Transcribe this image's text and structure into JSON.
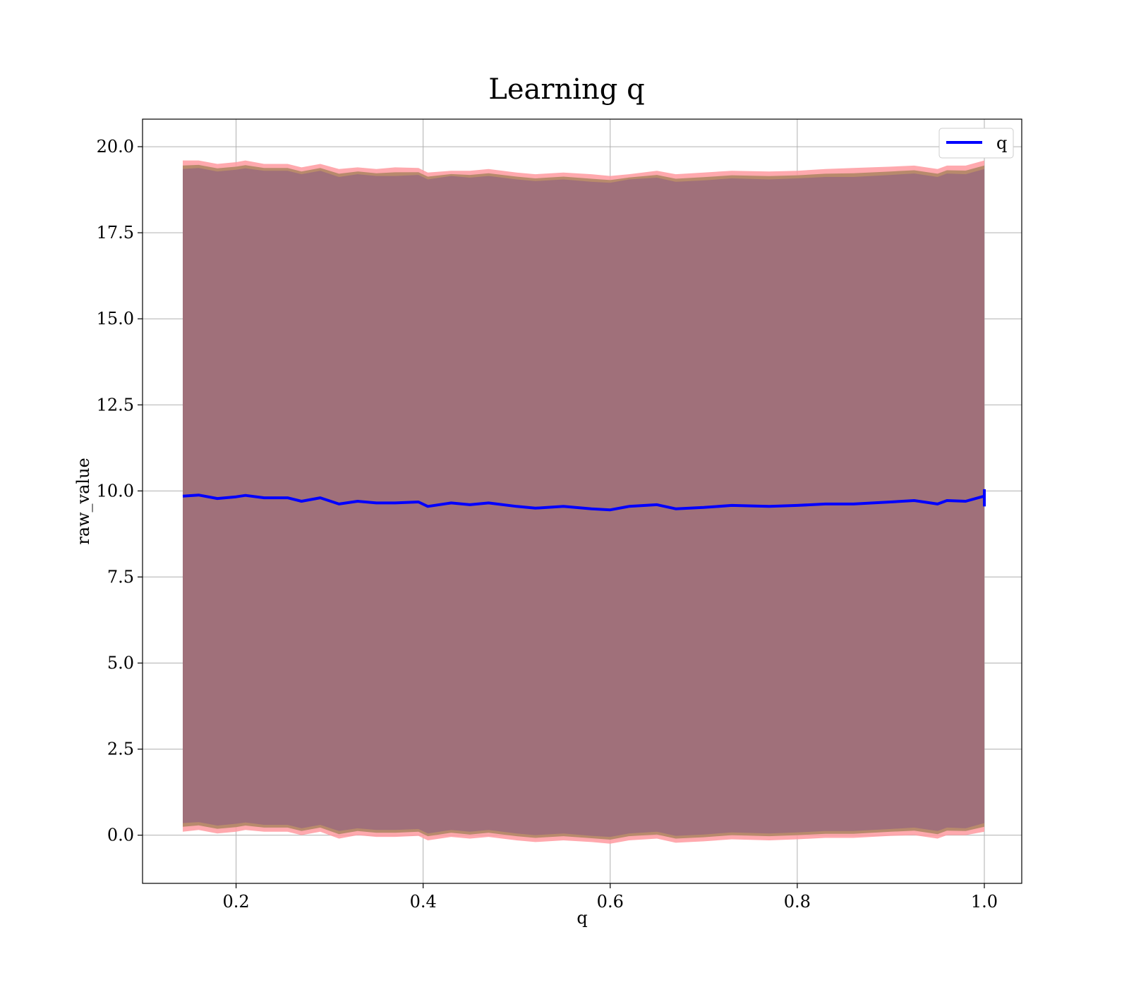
{
  "chart_data": {
    "type": "area",
    "title": "Learning q",
    "xlabel": "q",
    "ylabel": "raw_value",
    "xlim": [
      0.1,
      1.04
    ],
    "ylim": [
      -1.4,
      20.8
    ],
    "x_ticks": [
      0.2,
      0.4,
      0.6,
      0.8,
      1.0
    ],
    "x_tick_labels": [
      "0.2",
      "0.4",
      "0.6",
      "0.8",
      "1.0"
    ],
    "y_ticks": [
      0.0,
      2.5,
      5.0,
      7.5,
      10.0,
      12.5,
      15.0,
      17.5,
      20.0
    ],
    "y_tick_labels": [
      "0.0",
      "2.5",
      "5.0",
      "7.5",
      "10.0",
      "12.5",
      "15.0",
      "17.5",
      "20.0"
    ],
    "grid": true,
    "legend": {
      "placement": "top-right",
      "entries": [
        "q"
      ]
    },
    "colors": {
      "line": "#0000ff",
      "band_outer": "#ff9aa0",
      "band_middle": "#b88a6c",
      "band_inner": "#a0707a"
    },
    "series": [
      {
        "name": "q",
        "x": [
          0.143,
          0.16,
          0.18,
          0.2,
          0.21,
          0.23,
          0.255,
          0.27,
          0.29,
          0.31,
          0.33,
          0.35,
          0.37,
          0.395,
          0.405,
          0.43,
          0.45,
          0.47,
          0.5,
          0.52,
          0.55,
          0.58,
          0.6,
          0.62,
          0.65,
          0.67,
          0.7,
          0.73,
          0.77,
          0.8,
          0.83,
          0.86,
          0.9,
          0.925,
          0.95,
          0.96,
          0.98,
          1.0
        ],
        "values": [
          9.85,
          9.88,
          9.78,
          9.83,
          9.87,
          9.8,
          9.8,
          9.7,
          9.8,
          9.62,
          9.7,
          9.65,
          9.65,
          9.68,
          9.55,
          9.65,
          9.6,
          9.65,
          9.55,
          9.5,
          9.55,
          9.48,
          9.45,
          9.55,
          9.6,
          9.48,
          9.52,
          9.58,
          9.55,
          9.58,
          9.62,
          9.62,
          9.68,
          9.72,
          9.62,
          9.72,
          9.7,
          9.85
        ],
        "outer_upper": [
          19.6,
          19.6,
          19.5,
          19.55,
          19.6,
          19.5,
          19.5,
          19.4,
          19.5,
          19.35,
          19.4,
          19.35,
          19.4,
          19.38,
          19.25,
          19.3,
          19.3,
          19.35,
          19.25,
          19.2,
          19.25,
          19.2,
          19.15,
          19.2,
          19.3,
          19.2,
          19.25,
          19.3,
          19.28,
          19.3,
          19.35,
          19.38,
          19.42,
          19.45,
          19.35,
          19.45,
          19.45,
          19.6
        ],
        "outer_lower": [
          0.1,
          0.15,
          0.05,
          0.1,
          0.15,
          0.1,
          0.1,
          0.0,
          0.1,
          -0.1,
          0.0,
          -0.05,
          -0.05,
          -0.02,
          -0.15,
          -0.05,
          -0.1,
          -0.05,
          -0.15,
          -0.2,
          -0.15,
          -0.2,
          -0.25,
          -0.15,
          -0.1,
          -0.22,
          -0.18,
          -0.12,
          -0.15,
          -0.12,
          -0.08,
          -0.08,
          -0.02,
          0.0,
          -0.1,
          0.0,
          0.0,
          0.1
        ],
        "inner_upper": [
          19.35,
          19.38,
          19.28,
          19.33,
          19.37,
          19.3,
          19.3,
          19.2,
          19.3,
          19.12,
          19.2,
          19.15,
          19.15,
          19.18,
          19.05,
          19.15,
          19.1,
          19.15,
          19.05,
          19.0,
          19.05,
          18.98,
          18.95,
          19.05,
          19.1,
          18.98,
          19.02,
          19.08,
          19.05,
          19.08,
          19.12,
          19.12,
          19.18,
          19.22,
          19.12,
          19.22,
          19.2,
          19.35
        ],
        "inner_lower": [
          0.35,
          0.38,
          0.28,
          0.33,
          0.37,
          0.3,
          0.3,
          0.2,
          0.3,
          0.12,
          0.2,
          0.15,
          0.15,
          0.18,
          0.05,
          0.15,
          0.1,
          0.15,
          0.05,
          0.0,
          0.05,
          -0.02,
          -0.05,
          0.05,
          0.1,
          -0.02,
          0.02,
          0.08,
          0.05,
          0.08,
          0.12,
          0.12,
          0.18,
          0.22,
          0.12,
          0.22,
          0.2,
          0.35
        ]
      }
    ]
  }
}
